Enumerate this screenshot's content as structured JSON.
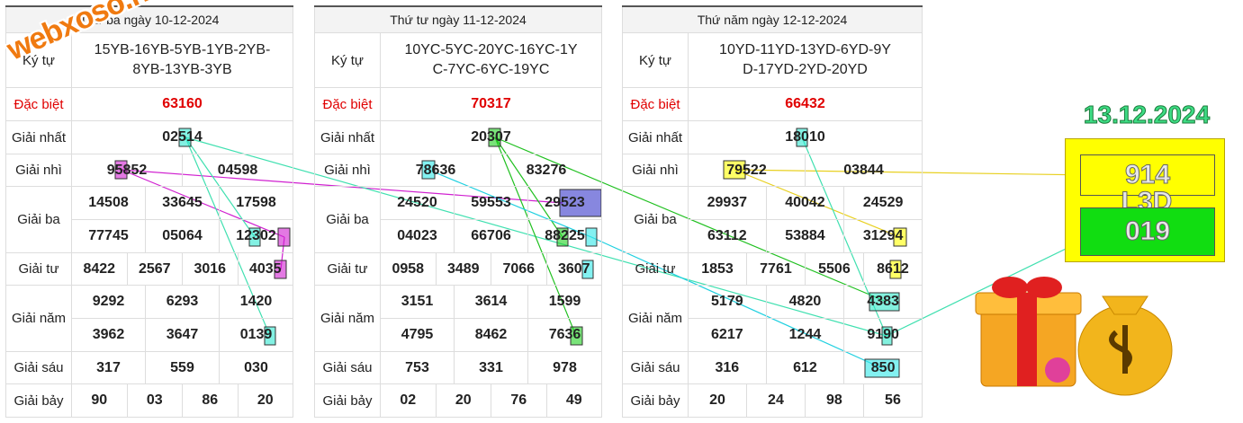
{
  "watermark": "webxoso.net",
  "tables": [
    {
      "header": "Thứ ba ngày 10-12-2024",
      "kytu_label": "Ký tự",
      "kytu": "15YB-16YB-5YB-1YB-2YB-8YB-13YB-3YB",
      "prizes": [
        {
          "label": "Đặc biệt",
          "numbers": [
            "63160"
          ]
        },
        {
          "label": "Giải nhất",
          "numbers": [
            "02514"
          ]
        },
        {
          "label": "Giải nhì",
          "numbers": [
            "95852",
            "04598"
          ]
        },
        {
          "label": "Giải ba",
          "numbers": [
            "14508",
            "33645",
            "17598",
            "77745",
            "05064",
            "12302"
          ]
        },
        {
          "label": "Giải tư",
          "numbers": [
            "8422",
            "2567",
            "3016",
            "4035"
          ]
        },
        {
          "label": "Giải năm",
          "numbers": [
            "9292",
            "6293",
            "1420",
            "3962",
            "3647",
            "0139"
          ]
        },
        {
          "label": "Giải sáu",
          "numbers": [
            "317",
            "559",
            "030"
          ]
        },
        {
          "label": "Giải bảy",
          "numbers": [
            "90",
            "03",
            "86",
            "20"
          ]
        }
      ]
    },
    {
      "header": "Thứ tư ngày 11-12-2024",
      "kytu_label": "Ký tự",
      "kytu": "10YC-5YC-20YC-16YC-1YC-7YC-6YC-19YC",
      "prizes": [
        {
          "label": "Đặc biệt",
          "numbers": [
            "70317"
          ]
        },
        {
          "label": "Giải nhất",
          "numbers": [
            "20307"
          ]
        },
        {
          "label": "Giải nhì",
          "numbers": [
            "78636",
            "83276"
          ]
        },
        {
          "label": "Giải ba",
          "numbers": [
            "24520",
            "59553",
            "29523",
            "04023",
            "66706",
            "88225"
          ]
        },
        {
          "label": "Giải tư",
          "numbers": [
            "0958",
            "3489",
            "7066",
            "3607"
          ]
        },
        {
          "label": "Giải năm",
          "numbers": [
            "3151",
            "3614",
            "1599",
            "4795",
            "8462",
            "7636"
          ]
        },
        {
          "label": "Giải sáu",
          "numbers": [
            "753",
            "331",
            "978"
          ]
        },
        {
          "label": "Giải bảy",
          "numbers": [
            "02",
            "20",
            "76",
            "49"
          ]
        }
      ]
    },
    {
      "header": "Thứ năm ngày 12-12-2024",
      "kytu_label": "Ký tự",
      "kytu": "10YD-11YD-13YD-6YD-9YD-17YD-2YD-20YD",
      "prizes": [
        {
          "label": "Đặc biệt",
          "numbers": [
            "66432"
          ]
        },
        {
          "label": "Giải nhất",
          "numbers": [
            "18010"
          ]
        },
        {
          "label": "Giải nhì",
          "numbers": [
            "79522",
            "03844"
          ]
        },
        {
          "label": "Giải ba",
          "numbers": [
            "29937",
            "40042",
            "24529",
            "63112",
            "53884",
            "31294"
          ]
        },
        {
          "label": "Giải tư",
          "numbers": [
            "1853",
            "7761",
            "5506",
            "8612"
          ]
        },
        {
          "label": "Giải năm",
          "numbers": [
            "5179",
            "4820",
            "4383",
            "6217",
            "1244",
            "9190"
          ]
        },
        {
          "label": "Giải sáu",
          "numbers": [
            "316",
            "612",
            "850"
          ]
        },
        {
          "label": "Giải bảy",
          "numbers": [
            "20",
            "24",
            "98",
            "56"
          ]
        }
      ]
    }
  ],
  "prediction": {
    "date": "13.12.2024",
    "top": "914",
    "middle": "L3D",
    "bottom": "019"
  }
}
